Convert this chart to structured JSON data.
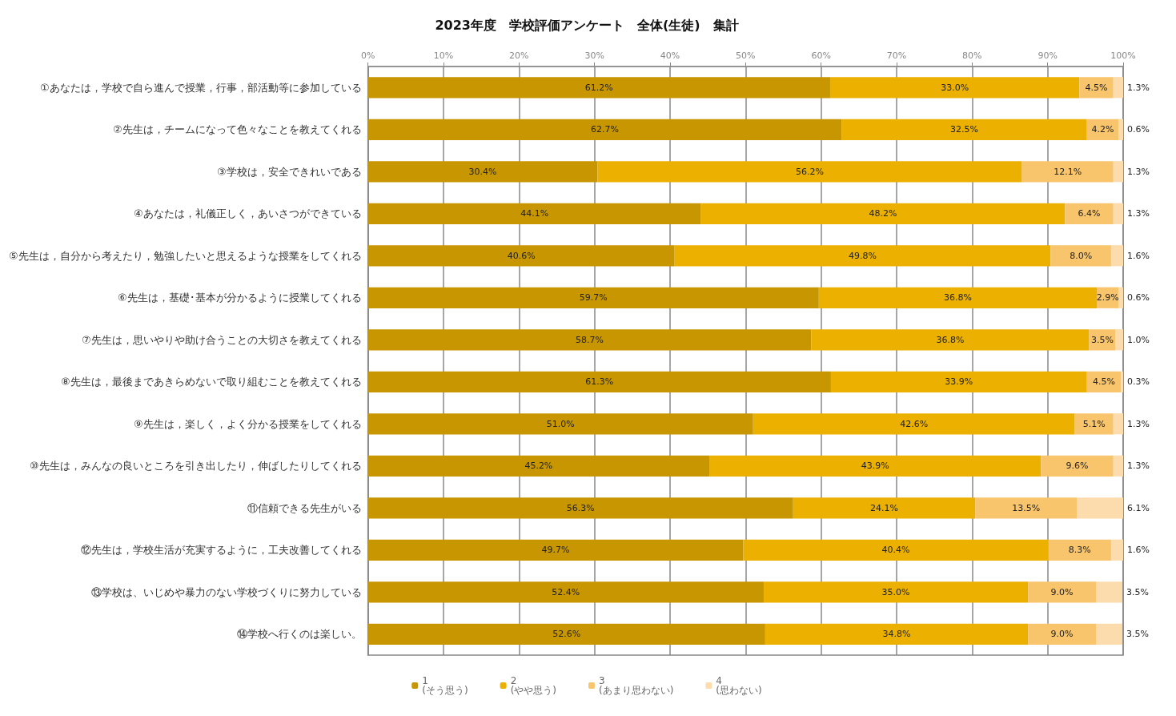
{
  "chart_data": {
    "type": "bar",
    "orientation": "horizontal",
    "stacked": true,
    "title": "2023年度　学校評価アンケート　全体(生徒)　集計",
    "categories": [
      "①あなたは，学校で自ら進んで授業，行事，部活動等に参加している",
      "②先生は，チームになって色々なことを教えてくれる",
      "③学校は，安全できれいである",
      "④あなたは，礼儀正しく，あいさつができている",
      "⑤先生は，自分から考えたり，勉強したいと思えるような授業をしてくれる",
      "⑥先生は，基礎･基本が分かるように授業してくれる",
      "⑦先生は，思いやりや助け合うことの大切さを教えてくれる",
      "⑧先生は，最後まであきらめないで取り組むことを教えてくれる",
      "⑨先生は，楽しく，よく分かる授業をしてくれる",
      "⑩先生は，みんなの良いところを引き出したり，伸ばしたりしてくれる",
      "⑪信頼できる先生がいる",
      "⑫先生は，学校生活が充実するように，工夫改善してくれる",
      "⑬学校は、いじめや暴力のない学校づくりに努力している",
      "⑭学校へ行くのは楽しい。"
    ],
    "series": [
      {
        "name": "1\n(そう思う)",
        "color": "#c89600",
        "values": [
          61.2,
          62.7,
          30.4,
          44.1,
          40.6,
          59.7,
          58.7,
          61.3,
          51.0,
          45.2,
          56.3,
          49.7,
          52.4,
          52.6
        ],
        "value_labels": [
          "61.2%",
          "62.7%",
          "30.4%",
          "44.1%",
          "40.6%",
          "59.7%",
          "58.7%",
          "61.3%",
          "51.0%",
          "45.2%",
          "56.3%",
          "49.7%",
          "52.4%",
          "52.6%"
        ]
      },
      {
        "name": "2\n(やや思う)",
        "color": "#ebb000",
        "values": [
          33.0,
          32.5,
          56.2,
          48.2,
          49.8,
          36.8,
          36.8,
          33.9,
          42.6,
          43.9,
          24.1,
          40.4,
          35.0,
          34.8
        ],
        "value_labels": [
          "33.0%",
          "32.5%",
          "56.2%",
          "48.2%",
          "49.8%",
          "36.8%",
          "36.8%",
          "33.9%",
          "42.6%",
          "43.9%",
          "24.1%",
          "40.4%",
          "35.0%",
          "34.8%"
        ]
      },
      {
        "name": "3\n(あまり思わない)",
        "color": "#f8c46c",
        "values": [
          4.5,
          4.2,
          12.1,
          6.4,
          8.0,
          2.9,
          3.5,
          4.5,
          5.1,
          9.6,
          13.5,
          8.3,
          9.0,
          9.0
        ],
        "value_labels": [
          "4.5%",
          "4.2%",
          "12.1%",
          "6.4%",
          "8.0%",
          "2.9%",
          "3.5%",
          "4.5%",
          "5.1%",
          "9.6%",
          "13.5%",
          "8.3%",
          "9.0%",
          "9.0%"
        ]
      },
      {
        "name": "4\n(思わない)",
        "color": "#fcdcac",
        "values": [
          1.3,
          0.6,
          1.3,
          1.3,
          1.6,
          0.6,
          1.0,
          0.3,
          1.3,
          1.3,
          6.1,
          1.6,
          3.5,
          3.5
        ],
        "value_labels": [
          "1.3%",
          "0.6%",
          "1.3%",
          "1.3%",
          "1.6%",
          "0.6%",
          "1.0%",
          "0.3%",
          "1.3%",
          "1.3%",
          "6.1%",
          "1.6%",
          "3.5%",
          "3.5%"
        ]
      }
    ],
    "xlim": [
      0,
      100
    ],
    "xticks": [
      {
        "value": 0,
        "label": "0%"
      },
      {
        "value": 10,
        "label": "10%"
      },
      {
        "value": 20,
        "label": "20%"
      },
      {
        "value": 30,
        "label": "30%"
      },
      {
        "value": 40,
        "label": "40%"
      },
      {
        "value": 50,
        "label": "50%"
      },
      {
        "value": 60,
        "label": "60%"
      },
      {
        "value": 70,
        "label": "70%"
      },
      {
        "value": 80,
        "label": "80%"
      },
      {
        "value": 90,
        "label": "90%"
      },
      {
        "value": 100,
        "label": "100%"
      }
    ],
    "grid": "x",
    "legend": "bottom"
  }
}
